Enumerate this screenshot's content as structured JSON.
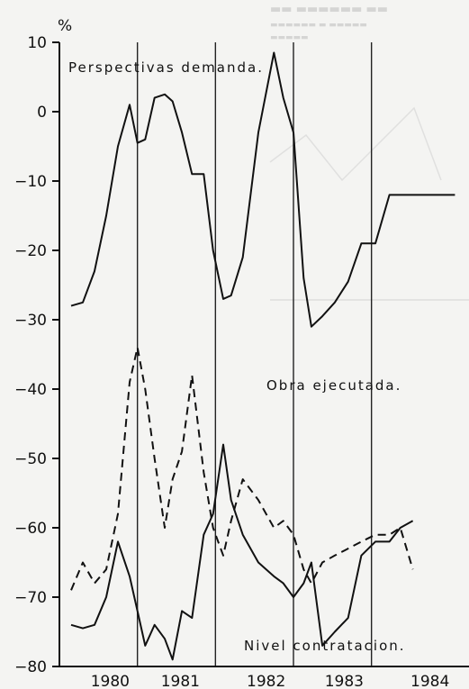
{
  "chart_data": {
    "type": "line",
    "ylabel": "%",
    "ylim": [
      -80,
      10
    ],
    "yticks": [
      10,
      0,
      -10,
      -20,
      -30,
      -40,
      -50,
      -60,
      -70,
      -80
    ],
    "xlim": [
      1979.75,
      1985.0
    ],
    "xticks": [
      {
        "label": "1980",
        "x": 1980.4
      },
      {
        "label": "1981",
        "x": 1981.3
      },
      {
        "label": "1982",
        "x": 1982.4
      },
      {
        "label": "1983",
        "x": 1983.4
      },
      {
        "label": "1984",
        "x": 1984.5
      }
    ],
    "vlines": [
      1980.75,
      1981.75,
      1982.75,
      1983.75
    ],
    "series": [
      {
        "name": "Perspectivas demanda.",
        "style": "solid",
        "x": [
          1979.9,
          1980.05,
          1980.2,
          1980.35,
          1980.5,
          1980.65,
          1980.75,
          1980.85,
          1980.97,
          1981.1,
          1981.2,
          1981.32,
          1981.45,
          1981.6,
          1981.72,
          1981.85,
          1981.95,
          1982.1,
          1982.3,
          1982.5,
          1982.62,
          1982.75,
          1982.88,
          1982.98,
          1983.12,
          1983.28,
          1983.45,
          1983.62,
          1983.8,
          1983.98,
          1984.12,
          1984.28,
          1984.45,
          1984.62,
          1984.82
        ],
        "values": [
          -28,
          -27.5,
          -23,
          -15,
          -5,
          1,
          -4.5,
          -4,
          2,
          2.5,
          1.5,
          -3,
          -9,
          -9,
          -20,
          -27,
          -26.5,
          -21,
          -3,
          8.5,
          2,
          -3,
          -24,
          -31,
          -29.5,
          -27.5,
          -24.5,
          -19,
          -19,
          -12,
          -12,
          -12,
          -12,
          -12,
          -12
        ]
      },
      {
        "name": "Obra ejecutada.",
        "style": "dashed",
        "x": [
          1979.9,
          1980.05,
          1980.2,
          1980.35,
          1980.5,
          1980.65,
          1980.75,
          1980.85,
          1980.97,
          1981.1,
          1981.2,
          1981.32,
          1981.45,
          1981.6,
          1981.72,
          1981.85,
          1981.95,
          1982.1,
          1982.3,
          1982.5,
          1982.62,
          1982.75,
          1982.88,
          1982.98,
          1983.12,
          1983.28,
          1983.45,
          1983.62,
          1983.8,
          1983.98,
          1984.12,
          1984.28
        ],
        "values": [
          -69,
          -65,
          -68,
          -66,
          -58,
          -39,
          -34,
          -40,
          -50,
          -60,
          -53,
          -49,
          -38,
          -52,
          -60,
          -64,
          -59,
          -53,
          -56,
          -60,
          -59,
          -61,
          -66,
          -68,
          -65,
          -64,
          -63,
          -62,
          -61,
          -61,
          -60,
          -66
        ]
      },
      {
        "name": "Nivel contratacion.",
        "style": "solid",
        "x": [
          1979.9,
          1980.05,
          1980.2,
          1980.35,
          1980.5,
          1980.65,
          1980.75,
          1980.85,
          1980.97,
          1981.1,
          1981.2,
          1981.32,
          1981.45,
          1981.6,
          1981.72,
          1981.85,
          1981.95,
          1982.1,
          1982.3,
          1982.5,
          1982.62,
          1982.75,
          1982.88,
          1982.98,
          1983.12,
          1983.28,
          1983.45,
          1983.62,
          1983.8,
          1983.98,
          1984.12,
          1984.28
        ],
        "values": [
          -74,
          -74.5,
          -74,
          -70,
          -62,
          -67,
          -72,
          -77,
          -74,
          -76,
          -79,
          -72,
          -73,
          -61,
          -58,
          -48,
          -56,
          -61,
          -65,
          -67,
          -68,
          -70,
          -68,
          -65,
          -77,
          -75,
          -73,
          -64,
          -62,
          -62,
          -60,
          -59
        ]
      }
    ]
  }
}
